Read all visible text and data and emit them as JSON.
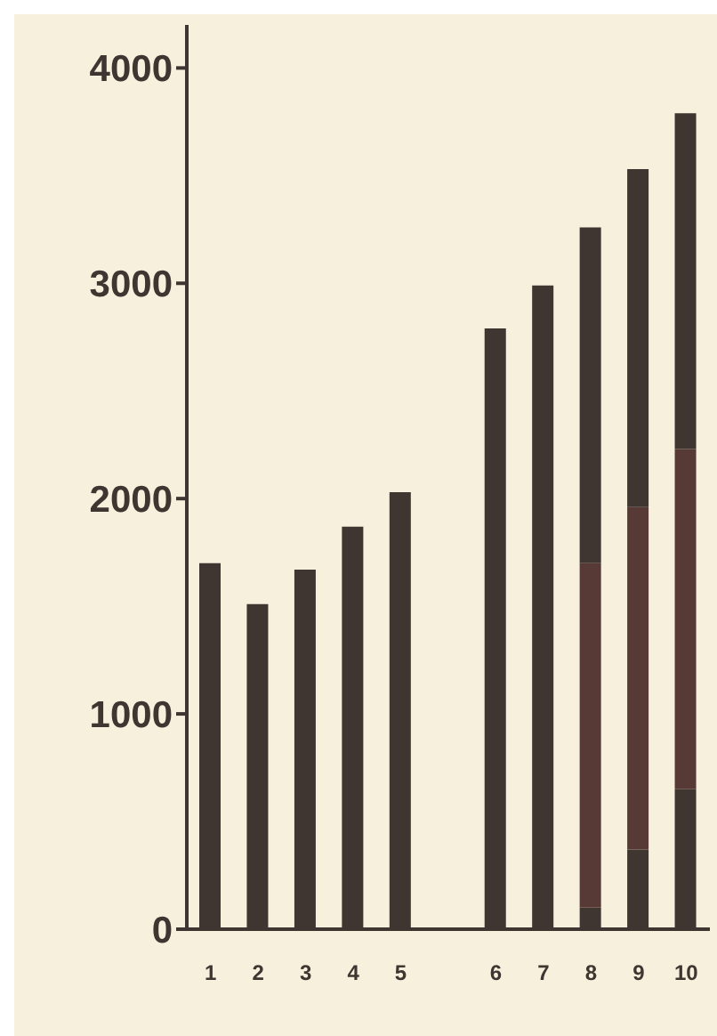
{
  "chart_data": {
    "type": "bar",
    "stacked": true,
    "categories": [
      "1",
      "2",
      "3",
      "4",
      "5",
      null,
      "6",
      "7",
      "8",
      "9",
      "10"
    ],
    "series": [
      {
        "color": "#3f3531",
        "values": [
          1700,
          1510,
          1670,
          1870,
          2030,
          null,
          2790,
          2990,
          100,
          370,
          650
        ]
      },
      {
        "color": "#573a36",
        "values": [
          null,
          null,
          null,
          null,
          null,
          null,
          null,
          null,
          1600,
          1590,
          1580
        ]
      },
      {
        "color": "#3f3531",
        "values": [
          null,
          null,
          null,
          null,
          null,
          null,
          null,
          null,
          1560,
          1570,
          1560
        ]
      }
    ],
    "ylim": [
      0,
      4200
    ],
    "yticks": [
      0,
      1000,
      2000,
      3000,
      4000
    ],
    "grid": false,
    "legend": false
  }
}
